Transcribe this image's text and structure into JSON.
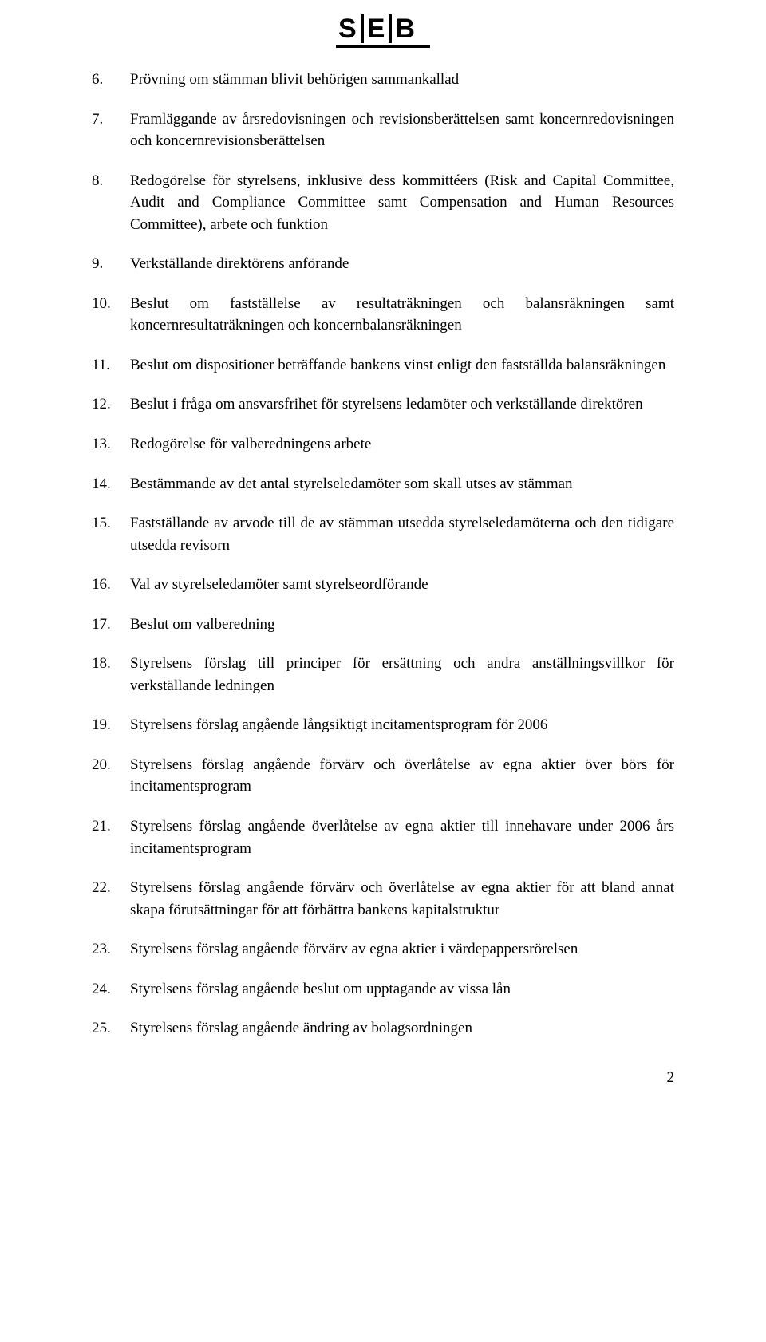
{
  "logo": {
    "letters": [
      "S",
      "E",
      "B"
    ]
  },
  "items": [
    {
      "n": "6.",
      "text": "Prövning om stämman blivit behörigen sammankallad"
    },
    {
      "n": "7.",
      "text": "Framläggande av årsredovisningen och revisionsberättelsen samt koncernredovisningen och koncernrevisionsberättelsen"
    },
    {
      "n": "8.",
      "text": "Redogörelse för styrelsens, inklusive dess kommittéers (Risk and Capital Committee, Audit and Compliance Committee samt Compensation and Human Resources Committee), arbete och funktion"
    },
    {
      "n": "9.",
      "text": "Verkställande direktörens anförande"
    },
    {
      "n": "10.",
      "text": "Beslut om fastställelse av resultaträkningen och balansräkningen samt koncernresultaträkningen och koncernbalansräkningen"
    },
    {
      "n": "11.",
      "text": "Beslut om dispositioner beträffande bankens vinst enligt den fastställda balansräkningen"
    },
    {
      "n": "12.",
      "text": "Beslut i fråga om ansvarsfrihet för styrelsens ledamöter och verkställande direktören"
    },
    {
      "n": "13.",
      "text": "Redogörelse för valberedningens arbete"
    },
    {
      "n": "14.",
      "text": "Bestämmande av det antal styrelseledamöter som skall utses av stämman"
    },
    {
      "n": "15.",
      "text": "Fastställande av arvode till de av stämman utsedda styrelseledamöterna och den tidigare utsedda revisorn"
    },
    {
      "n": "16.",
      "text": "Val av styrelseledamöter samt styrelseordförande"
    },
    {
      "n": "17.",
      "text": "Beslut om valberedning"
    },
    {
      "n": "18.",
      "text": "Styrelsens förslag till principer för ersättning och andra anställningsvillkor för verkställande ledningen"
    },
    {
      "n": "19.",
      "text": "Styrelsens förslag angående långsiktigt incitamentsprogram för 2006"
    },
    {
      "n": "20.",
      "text": "Styrelsens förslag angående förvärv och överlåtelse av egna aktier över börs för incitamentsprogram"
    },
    {
      "n": "21.",
      "text": "Styrelsens förslag angående överlåtelse av egna aktier till innehavare under 2006 års incitamentsprogram"
    },
    {
      "n": "22.",
      "text": "Styrelsens förslag angående förvärv och överlåtelse av egna aktier för att bland annat skapa förutsättningar för att förbättra bankens kapitalstruktur"
    },
    {
      "n": "23.",
      "text": "Styrelsens förslag angående förvärv av egna aktier i värdepappersrörelsen"
    },
    {
      "n": "24.",
      "text": "Styrelsens förslag angående beslut om upptagande av vissa lån"
    },
    {
      "n": "25.",
      "text": "Styrelsens förslag angående ändring av bolagsordningen"
    }
  ],
  "page_number": "2"
}
